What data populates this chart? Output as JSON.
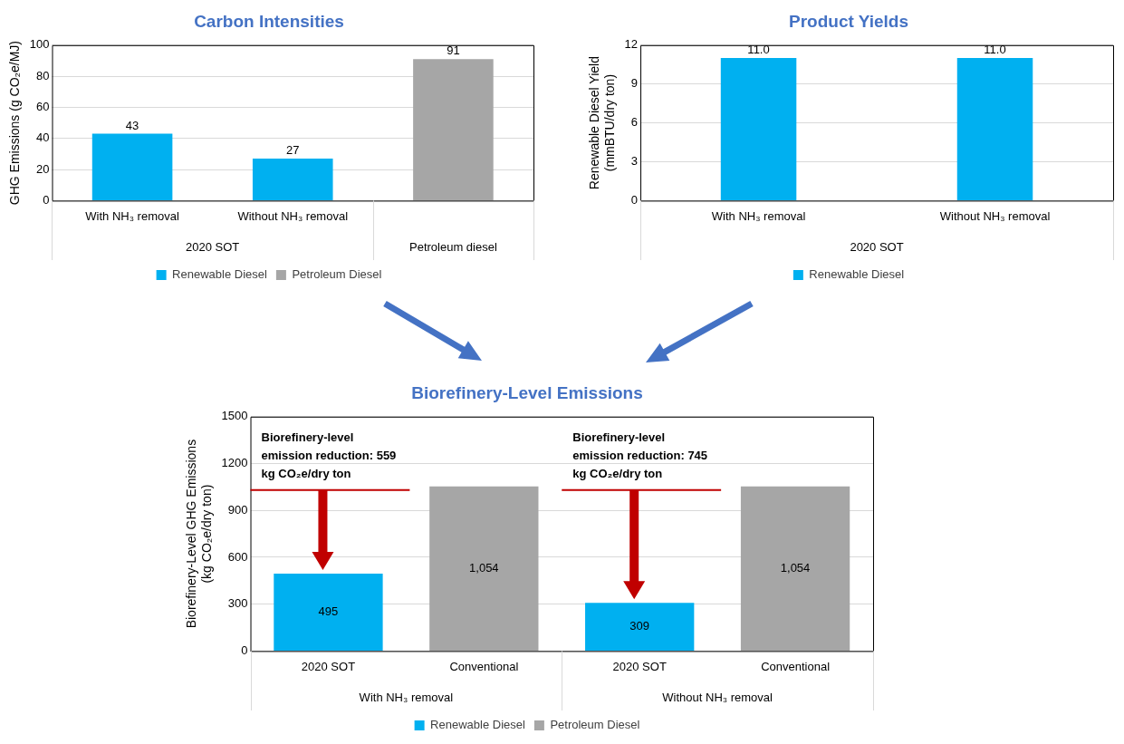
{
  "chart_data": [
    {
      "type": "bar",
      "title": "Carbon Intensities",
      "ylabel": "GHG Emissions (g CO₂e/MJ)",
      "categories": [
        "With NH₃ removal",
        "Without NH₃ removal",
        null
      ],
      "series": [
        {
          "name": "Renewable Diesel",
          "color": "#00b0f0",
          "values": [
            43,
            27,
            null
          ]
        },
        {
          "name": "Petroleum Diesel",
          "color": "#a6a6a6",
          "values": [
            null,
            null,
            91
          ]
        }
      ],
      "ylim": [
        0,
        100
      ],
      "yticks": [
        0,
        20,
        40,
        60,
        80,
        100
      ],
      "grid": "y",
      "legend": "bottom",
      "data_labels": true,
      "annotations": [
        "2020 SOT",
        "Petroleum diesel"
      ]
    },
    {
      "type": "bar",
      "title": "Product Yields",
      "ylabel": "Renewable Diesel Yield\n(mmBTU/dry ton)",
      "categories": [
        "With NH₃ removal",
        "Without NH₃ removal"
      ],
      "series": [
        {
          "name": "Renewable Diesel",
          "color": "#00b0f0",
          "values": [
            11,
            11
          ],
          "value_labels": [
            "11.0",
            "11.0"
          ]
        }
      ],
      "ylim": [
        0,
        12
      ],
      "yticks": [
        0,
        3,
        6,
        9,
        12
      ],
      "grid": "y",
      "legend": "bottom",
      "annotations": [
        "2020 SOT"
      ]
    },
    {
      "type": "bar",
      "title": "Biorefinery-Level Emissions",
      "ylabel": "Biorefinery-Level GHG Emissions\n(kg CO₂e/dry ton)",
      "categories": [
        "2020 SOT",
        "Conventional",
        "2020 SOT",
        "Conventional"
      ],
      "series": [
        {
          "name": "Renewable Diesel",
          "color": "#00b0f0",
          "values": [
            495,
            null,
            309,
            null
          ],
          "value_labels": [
            "495",
            null,
            "309",
            null
          ]
        },
        {
          "name": "Petroleum Diesel",
          "color": "#a6a6a6",
          "values": [
            null,
            1054,
            null,
            1054
          ],
          "value_labels": [
            null,
            "1,054",
            null,
            "1,054"
          ]
        }
      ],
      "ylim": [
        0,
        1500
      ],
      "yticks": [
        0,
        300,
        600,
        900,
        1200,
        1500
      ],
      "grid": "y",
      "legend": "bottom",
      "annotations": [
        "With NH₃ removal",
        "Without NH₃ removal",
        "Biorefinery-level emission reduction: 559 kg CO₂e/dry ton",
        "Biorefinery-level emission reduction: 745 kg CO₂e/dry ton"
      ]
    }
  ]
}
